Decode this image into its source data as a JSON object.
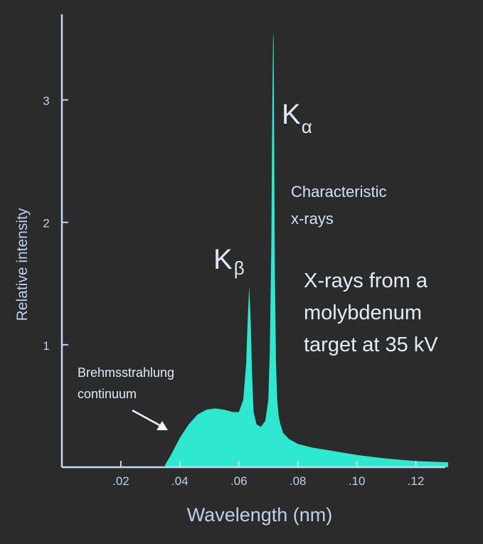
{
  "chart_data": {
    "type": "area",
    "xlabel": "Wavelength (nm)",
    "ylabel": "Relative intensity",
    "xlim": [
      0.0,
      0.13
    ],
    "ylim": [
      0,
      3.7
    ],
    "x_ticks": [
      0.02,
      0.04,
      0.06,
      0.08,
      0.1,
      0.12
    ],
    "x_tick_labels": [
      ".02",
      ".04",
      ".06",
      ".08",
      ".10",
      ".12"
    ],
    "y_ticks": [
      1,
      2,
      3
    ],
    "y_tick_labels": [
      "1",
      "2",
      "3"
    ],
    "series": [
      {
        "x": [
          0.035,
          0.037,
          0.04,
          0.043,
          0.046,
          0.049,
          0.052,
          0.055,
          0.058,
          0.06,
          0.0615,
          0.0625,
          0.063,
          0.0635,
          0.064,
          0.0645,
          0.065,
          0.066,
          0.0675,
          0.069,
          0.07,
          0.0705,
          0.071,
          0.0713,
          0.0716,
          0.0718,
          0.072,
          0.0722,
          0.0726,
          0.073,
          0.0735,
          0.074,
          0.075,
          0.077,
          0.08,
          0.085,
          0.09,
          0.1,
          0.11,
          0.12,
          0.131
        ],
        "y": [
          0.02,
          0.1,
          0.24,
          0.35,
          0.43,
          0.47,
          0.48,
          0.47,
          0.45,
          0.45,
          0.55,
          0.85,
          1.2,
          1.48,
          1.2,
          0.75,
          0.45,
          0.35,
          0.33,
          0.38,
          0.55,
          0.95,
          1.8,
          2.8,
          3.55,
          3.48,
          2.6,
          1.6,
          0.85,
          0.55,
          0.42,
          0.36,
          0.28,
          0.23,
          0.19,
          0.16,
          0.14,
          0.1,
          0.07,
          0.05,
          0.04
        ],
        "color": "#2ee8d0"
      }
    ],
    "annotations": {
      "k_alpha": {
        "main": "K",
        "sub": "α"
      },
      "k_beta": {
        "main": "K",
        "sub": "β"
      },
      "characteristic": [
        "Characteristic",
        "x-rays"
      ],
      "description": [
        "X-rays from a",
        "molybdenum",
        "target at 35 kV"
      ],
      "continuum": [
        "Brehmsstrahlung",
        "continuum"
      ]
    },
    "grid": false,
    "legend": "none"
  },
  "colors": {
    "background": "#2b2b2b",
    "axis": "#c5d6f2",
    "fill": "#2ee8d0",
    "text": "#dde9fb",
    "tick_text": "#bcd0ef"
  }
}
